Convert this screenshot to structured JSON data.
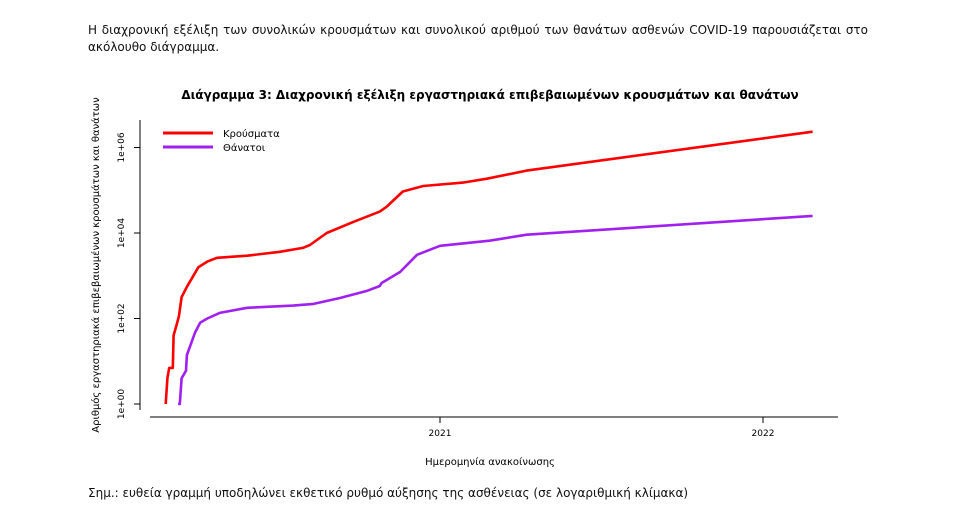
{
  "intro_text": "Η διαχρονική εξέλιξη των συνολικών κρουσμάτων και συνολικού αριθμού των θανάτων ασθενών COVID-19 παρουσιάζεται στο ακόλουθο διάγραμμα.",
  "note_text": "Σημ.: ευθεία γραμμή υποδηλώνει εκθετικό ρυθμό αύξησης της ασθένειας (σε λογαριθμική κλίμακα)",
  "chart_data": {
    "type": "line",
    "title": "Διάγραμμα 3: Διαχρονική εξέλιξη εργαστηριακά επιβεβαιωμένων κρουσμάτων και θανάτων",
    "xlabel": "Ημερομηνία ανακοίνωσης",
    "ylabel": "Αριθμός εργαστηριακά επιβεβαιωμένων κρουσμάτων και θανάτων",
    "y_scale": "log",
    "ylim": [
      1,
      1000000
    ],
    "y_ticks": [
      "1e+00",
      "1e+02",
      "1e+04",
      "1e+06"
    ],
    "y_tick_values": [
      1,
      100,
      10000,
      1000000
    ],
    "x_ticks": [
      "2021",
      "2022"
    ],
    "x_tick_values": [
      "2021-01-01",
      "2022-01-01"
    ],
    "xlim": [
      "2020-02-10",
      "2022-03-20"
    ],
    "grid": false,
    "legend_position": "top-left",
    "series": [
      {
        "name": "Κρούσματα",
        "color": "#ff0000",
        "x": [
          "2020-02-26",
          "2020-02-28",
          "2020-03-01",
          "2020-03-05",
          "2020-03-06",
          "2020-03-10",
          "2020-03-12",
          "2020-03-15",
          "2020-03-21",
          "2020-04-03",
          "2020-04-13",
          "2020-04-24",
          "2020-05-28",
          "2020-07-04",
          "2020-07-30",
          "2020-08-07",
          "2020-08-26",
          "2020-09-25",
          "2020-10-25",
          "2020-11-02",
          "2020-11-20",
          "2020-12-13",
          "2021-01-27",
          "2021-02-23",
          "2021-04-09",
          "2022-02-26"
        ],
        "y": [
          1,
          4,
          7,
          7,
          40,
          80,
          112,
          316,
          550,
          1585,
          2138,
          2630,
          2950,
          3630,
          4470,
          5250,
          10000,
          18200,
          31600,
          41700,
          93300,
          125900,
          151000,
          186000,
          288000,
          2340000
        ]
      },
      {
        "name": "Θάνατοι",
        "color": "#a020f0",
        "x": [
          "2020-03-11",
          "2020-03-13",
          "2020-03-15",
          "2020-03-20",
          "2020-03-21",
          "2020-03-30",
          "2020-04-05",
          "2020-04-13",
          "2020-04-27",
          "2020-05-28",
          "2020-07-19",
          "2020-08-11",
          "2020-09-10",
          "2020-10-11",
          "2020-10-25",
          "2020-10-27",
          "2020-11-17",
          "2020-12-06",
          "2021-01-01",
          "2021-02-26",
          "2021-04-09",
          "2022-02-26"
        ],
        "y": [
          1,
          1,
          4,
          6,
          14,
          46,
          80,
          100,
          135,
          178,
          200,
          219,
          302,
          447,
          575,
          676,
          1230,
          3090,
          5010,
          6610,
          9120,
          25100
        ]
      }
    ]
  }
}
